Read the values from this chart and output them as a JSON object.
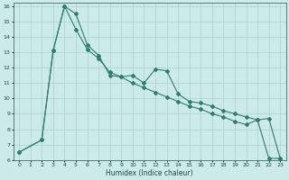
{
  "xlabel": "Humidex (Indice chaleur)",
  "bg_color": "#cceae8",
  "grid_color": "#aad4d0",
  "line_color": "#2e7d6e",
  "xlim": [
    -0.5,
    23.5
  ],
  "ylim": [
    6,
    16.2
  ],
  "xticks": [
    0,
    1,
    2,
    3,
    4,
    5,
    6,
    7,
    8,
    9,
    10,
    11,
    12,
    13,
    14,
    15,
    16,
    17,
    18,
    19,
    20,
    21,
    22,
    23
  ],
  "yticks": [
    6,
    7,
    8,
    9,
    10,
    11,
    12,
    13,
    14,
    15,
    16
  ],
  "line1_x": [
    0,
    2,
    3,
    4,
    5,
    6,
    7,
    8,
    9,
    10,
    11,
    12,
    13,
    14,
    15,
    16,
    17,
    18,
    19,
    20,
    21,
    22,
    23
  ],
  "line1_y": [
    6.5,
    7.3,
    13.1,
    16.0,
    15.5,
    13.5,
    12.8,
    11.5,
    11.4,
    11.5,
    11.0,
    11.9,
    11.8,
    10.3,
    9.8,
    9.7,
    9.5,
    9.2,
    9.0,
    8.8,
    8.6,
    6.1,
    6.1
  ],
  "line2_x": [
    0,
    2,
    3,
    4,
    5,
    6,
    7,
    8,
    9,
    10,
    11,
    12,
    13,
    14,
    15,
    16,
    17,
    18,
    19,
    20,
    21,
    22,
    23
  ],
  "line2_y": [
    6.5,
    7.3,
    13.1,
    16.0,
    14.5,
    13.2,
    12.6,
    11.7,
    11.4,
    11.0,
    10.7,
    10.4,
    10.1,
    9.8,
    9.5,
    9.3,
    9.0,
    8.8,
    8.5,
    8.3,
    8.6,
    8.7,
    6.1
  ]
}
